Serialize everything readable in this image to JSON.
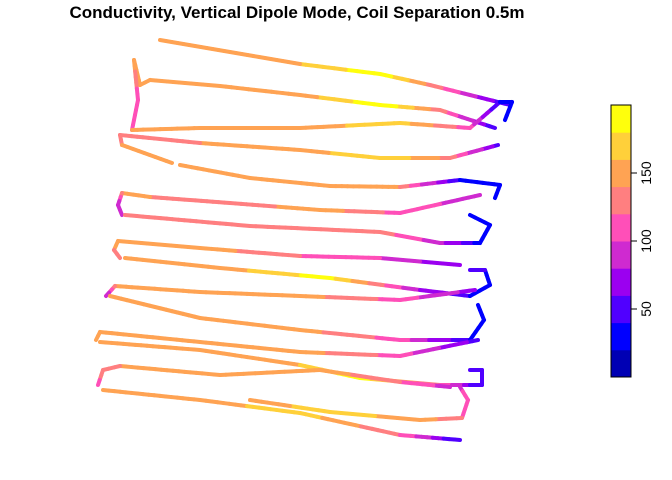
{
  "title": "Conductivity, Vertical Dipole Mode, Coil Separation 0.5m",
  "legend": {
    "ticks": [
      {
        "label": "50",
        "value": 50
      },
      {
        "label": "100",
        "value": 100
      },
      {
        "label": "150",
        "value": 150
      }
    ],
    "range": [
      0,
      200
    ],
    "colors": [
      "#0000b4",
      "#0000ff",
      "#5000ff",
      "#9b00f0",
      "#cf2ad0",
      "#ff4fb8",
      "#ff7f80",
      "#ffa353",
      "#ffd03a",
      "#ffff0c"
    ]
  },
  "chart_data": {
    "type": "heatmap",
    "title": "Conductivity, Vertical Dipole Mode, Coil Separation 0.5m",
    "value_range": [
      0,
      200
    ],
    "lines": [
      {
        "points": [
          [
            510,
            105
          ],
          [
            430,
            85
          ],
          [
            380,
            74
          ],
          [
            300,
            64
          ],
          [
            230,
            52
          ],
          [
            160,
            40
          ]
        ],
        "values": [
          40,
          130,
          195,
          160,
          150,
          150
        ]
      },
      {
        "points": [
          [
            495,
            128
          ],
          [
            440,
            110
          ],
          [
            380,
            105
          ],
          [
            300,
            95
          ],
          [
            220,
            86
          ],
          [
            150,
            80
          ],
          [
            140,
            85
          ]
        ],
        "values": [
          40,
          130,
          195,
          150,
          160,
          140,
          140
        ]
      },
      {
        "points": [
          [
            140,
            85
          ],
          [
            134,
            60
          ],
          [
            138,
            100
          ],
          [
            132,
            130
          ]
        ],
        "values": [
          140,
          150,
          110,
          120
        ]
      },
      {
        "points": [
          [
            132,
            130
          ],
          [
            200,
            128
          ],
          [
            300,
            128
          ],
          [
            400,
            123
          ],
          [
            470,
            128
          ],
          [
            500,
            102
          ],
          [
            512,
            102
          ],
          [
            505,
            120
          ]
        ],
        "values": [
          140,
          140,
          150,
          170,
          110,
          40,
          30,
          40
        ]
      },
      {
        "points": [
          [
            498,
            145
          ],
          [
            450,
            158
          ],
          [
            380,
            158
          ],
          [
            300,
            150
          ],
          [
            200,
            143
          ],
          [
            120,
            135
          ],
          [
            122,
            145
          ],
          [
            172,
            163
          ]
        ],
        "values": [
          50,
          130,
          180,
          150,
          140,
          130,
          140,
          140
        ]
      },
      {
        "points": [
          [
            180,
            165
          ],
          [
            250,
            178
          ],
          [
            330,
            186
          ],
          [
            400,
            187
          ],
          [
            460,
            180
          ],
          [
            500,
            185
          ],
          [
            495,
            198
          ]
        ],
        "values": [
          150,
          150,
          160,
          140,
          40,
          20,
          30
        ]
      },
      {
        "points": [
          [
            480,
            195
          ],
          [
            400,
            213
          ],
          [
            320,
            210
          ],
          [
            230,
            203
          ],
          [
            150,
            197
          ],
          [
            122,
            193
          ],
          [
            118,
            205
          ],
          [
            122,
            215
          ]
        ],
        "values": [
          90,
          110,
          150,
          130,
          140,
          140,
          90,
          90
        ]
      },
      {
        "points": [
          [
            125,
            215
          ],
          [
            250,
            226
          ],
          [
            380,
            232
          ],
          [
            440,
            243
          ],
          [
            480,
            243
          ],
          [
            490,
            225
          ],
          [
            470,
            215
          ]
        ],
        "values": [
          140,
          130,
          130,
          90,
          30,
          30,
          40
        ]
      },
      {
        "points": [
          [
            460,
            265
          ],
          [
            380,
            258
          ],
          [
            300,
            256
          ],
          [
            200,
            248
          ],
          [
            118,
            241
          ],
          [
            114,
            250
          ],
          [
            120,
            258
          ]
        ],
        "values": [
          60,
          100,
          120,
          150,
          150,
          140,
          130
        ]
      },
      {
        "points": [
          [
            125,
            258
          ],
          [
            220,
            268
          ],
          [
            330,
            278
          ],
          [
            420,
            290
          ],
          [
            470,
            296
          ],
          [
            490,
            285
          ],
          [
            485,
            270
          ],
          [
            470,
            270
          ]
        ],
        "values": [
          140,
          150,
          190,
          80,
          40,
          30,
          40,
          40
        ]
      },
      {
        "points": [
          [
            475,
            290
          ],
          [
            400,
            300
          ],
          [
            300,
            296
          ],
          [
            200,
            292
          ],
          [
            115,
            286
          ],
          [
            106,
            296
          ]
        ],
        "values": [
          70,
          110,
          150,
          140,
          140,
          90
        ]
      },
      {
        "points": [
          [
            110,
            296
          ],
          [
            200,
            318
          ],
          [
            300,
            330
          ],
          [
            400,
            340
          ],
          [
            470,
            340
          ],
          [
            484,
            320
          ],
          [
            478,
            305
          ]
        ],
        "values": [
          140,
          150,
          150,
          110,
          40,
          30,
          40
        ]
      },
      {
        "points": [
          [
            478,
            340
          ],
          [
            400,
            356
          ],
          [
            300,
            352
          ],
          [
            200,
            342
          ],
          [
            100,
            332
          ],
          [
            96,
            340
          ]
        ],
        "values": [
          50,
          110,
          150,
          150,
          150,
          140
        ]
      },
      {
        "points": [
          [
            100,
            342
          ],
          [
            200,
            350
          ],
          [
            300,
            365
          ],
          [
            360,
            378
          ],
          [
            440,
            385
          ],
          [
            482,
            385
          ],
          [
            482,
            370
          ],
          [
            470,
            370
          ]
        ],
        "values": [
          140,
          150,
          160,
          190,
          120,
          40,
          40,
          40
        ]
      },
      {
        "points": [
          [
            450,
            387
          ],
          [
            400,
            382
          ],
          [
            320,
            370
          ],
          [
            220,
            375
          ],
          [
            120,
            366
          ],
          [
            103,
            370
          ],
          [
            98,
            385
          ]
        ],
        "values": [
          90,
          120,
          150,
          150,
          140,
          130,
          110
        ]
      },
      {
        "points": [
          [
            103,
            390
          ],
          [
            200,
            400
          ],
          [
            300,
            413
          ],
          [
            400,
            435
          ],
          [
            460,
            440
          ]
        ],
        "values": [
          140,
          150,
          170,
          120,
          40
        ]
      },
      {
        "points": [
          [
            460,
            387
          ],
          [
            468,
            400
          ],
          [
            462,
            418
          ],
          [
            420,
            420
          ],
          [
            330,
            412
          ],
          [
            250,
            400
          ]
        ],
        "values": [
          90,
          110,
          120,
          150,
          170,
          150
        ]
      }
    ]
  }
}
